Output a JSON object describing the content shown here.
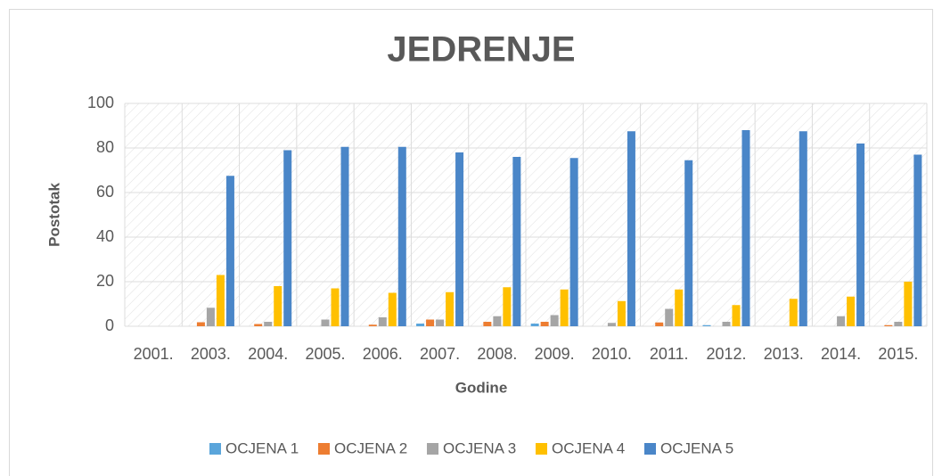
{
  "chart_data": {
    "type": "bar",
    "title": "JEDRENJE",
    "x_label": "Godine",
    "y_label": "Postotak",
    "categories": [
      "2001.",
      "2003.",
      "2004.",
      "2005.",
      "2006.",
      "2007.",
      "2008.",
      "2009.",
      "2010.",
      "2011.",
      "2012.",
      "2013.",
      "2014.",
      "2015."
    ],
    "series": [
      {
        "name": "OCJENA 1",
        "color": "#5aa5db",
        "values": [
          0,
          0,
          0,
          0,
          0,
          1.2,
          0,
          1.2,
          0,
          0,
          0.5,
          0,
          0,
          0
        ]
      },
      {
        "name": "OCJENA 2",
        "color": "#ed7d31",
        "values": [
          0,
          1.8,
          1,
          0,
          0.7,
          3,
          2,
          2,
          0,
          1.7,
          0,
          0,
          0,
          0.5
        ]
      },
      {
        "name": "OCJENA 3",
        "color": "#a5a5a5",
        "values": [
          0,
          8.3,
          2,
          3,
          4,
          3,
          4.5,
          5,
          1.5,
          7.8,
          2,
          0,
          4.5,
          2
        ]
      },
      {
        "name": "OCJENA 4",
        "color": "#ffc000",
        "values": [
          0,
          23,
          18,
          17,
          15,
          15.3,
          17.5,
          16.5,
          11.3,
          16.5,
          9.5,
          12.3,
          13.3,
          20
        ]
      },
      {
        "name": "OCJENA 5",
        "color": "#4a86c8",
        "values": [
          0,
          67.5,
          79,
          80.5,
          80.5,
          78,
          76,
          75.5,
          87.5,
          74.5,
          88,
          87.5,
          82,
          77
        ]
      }
    ],
    "ylim": [
      0,
      100
    ],
    "yticks": [
      0,
      20,
      40,
      60,
      80,
      100
    ],
    "grid": true,
    "legend": "bottom"
  }
}
